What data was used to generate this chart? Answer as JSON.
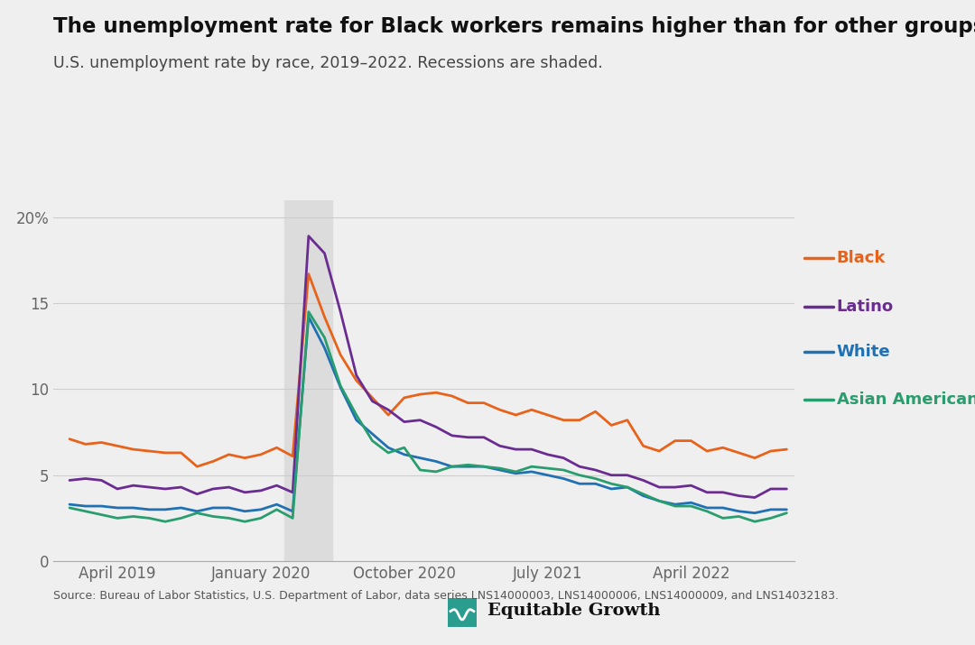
{
  "title": "The unemployment rate for Black workers remains higher than for other groups",
  "subtitle": "U.S. unemployment rate by race, 2019–2022. Recessions are shaded.",
  "source": "Source: Bureau of Labor Statistics, U.S. Department of Labor, data series LNS14000003, LNS14000006, LNS14000009, and LNS14032183.",
  "bg_color": "#efefef",
  "recession_color": "#dcdcdc",
  "recession_start": 14,
  "recession_end": 16,
  "series": {
    "Black": {
      "color": "#e8621a",
      "values": [
        7.1,
        6.8,
        6.9,
        6.7,
        6.5,
        6.4,
        6.3,
        6.3,
        5.5,
        5.8,
        6.2,
        6.0,
        6.2,
        6.6,
        6.1,
        16.7,
        14.2,
        12.0,
        10.5,
        9.5,
        8.5,
        9.5,
        9.7,
        9.8,
        9.6,
        9.2,
        9.2,
        8.8,
        8.5,
        8.8,
        8.5,
        8.2,
        8.2,
        8.7,
        7.9,
        8.2,
        6.7,
        6.4,
        7.0,
        7.0,
        6.4,
        6.6,
        6.3,
        6.0,
        6.4,
        6.5
      ]
    },
    "Latino": {
      "color": "#6a2c91",
      "values": [
        4.7,
        4.8,
        4.7,
        4.2,
        4.4,
        4.3,
        4.2,
        4.3,
        3.9,
        4.2,
        4.3,
        4.0,
        4.1,
        4.4,
        4.0,
        18.9,
        17.9,
        14.5,
        10.8,
        9.3,
        8.8,
        8.1,
        8.2,
        7.8,
        7.3,
        7.2,
        7.2,
        6.7,
        6.5,
        6.5,
        6.2,
        6.0,
        5.5,
        5.3,
        5.0,
        5.0,
        4.7,
        4.3,
        4.3,
        4.4,
        4.0,
        4.0,
        3.8,
        3.7,
        4.2,
        4.2
      ]
    },
    "White": {
      "color": "#2070b4",
      "values": [
        3.3,
        3.2,
        3.2,
        3.1,
        3.1,
        3.0,
        3.0,
        3.1,
        2.9,
        3.1,
        3.1,
        2.9,
        3.0,
        3.3,
        2.9,
        14.2,
        12.4,
        10.1,
        8.2,
        7.4,
        6.6,
        6.2,
        6.0,
        5.8,
        5.5,
        5.5,
        5.5,
        5.3,
        5.1,
        5.2,
        5.0,
        4.8,
        4.5,
        4.5,
        4.2,
        4.3,
        3.8,
        3.5,
        3.3,
        3.4,
        3.1,
        3.1,
        2.9,
        2.8,
        3.0,
        3.0
      ]
    },
    "Asian American": {
      "color": "#2a9d6e",
      "values": [
        3.1,
        2.9,
        2.7,
        2.5,
        2.6,
        2.5,
        2.3,
        2.5,
        2.8,
        2.6,
        2.5,
        2.3,
        2.5,
        3.0,
        2.5,
        14.5,
        13.0,
        10.2,
        8.5,
        7.0,
        6.3,
        6.6,
        5.3,
        5.2,
        5.5,
        5.6,
        5.5,
        5.4,
        5.2,
        5.5,
        5.4,
        5.3,
        5.0,
        4.8,
        4.5,
        4.3,
        3.9,
        3.5,
        3.2,
        3.2,
        2.9,
        2.5,
        2.6,
        2.3,
        2.5,
        2.8
      ]
    }
  },
  "ylim": [
    0,
    21
  ],
  "yticks": [
    0,
    5,
    10,
    15,
    20
  ],
  "ytick_labels": [
    "0",
    "5",
    "10",
    "15",
    "20%"
  ],
  "xtick_positions": [
    3,
    12,
    21,
    30,
    39
  ],
  "xtick_labels": [
    "April 2019",
    "January 2020",
    "October 2020",
    "July 2021",
    "April 2022"
  ],
  "legend_labels": [
    "Black",
    "Latino",
    "White",
    "Asian American"
  ],
  "legend_colors": [
    "#e8621a",
    "#6a2c91",
    "#2070b4",
    "#2a9d6e"
  ]
}
